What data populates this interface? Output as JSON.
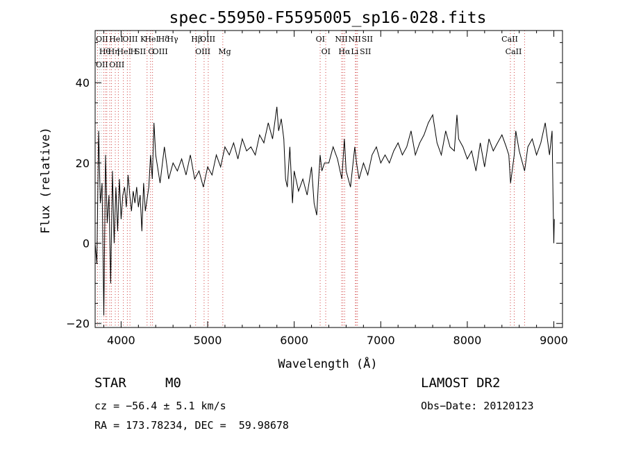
{
  "chart_data": {
    "type": "line",
    "title": "spec-55950-F5595005_sp16-028.fits",
    "xlabel": "Wavelength (Å)",
    "ylabel": "Flux (relative)",
    "xlim": [
      3700,
      9100
    ],
    "ylim": [
      -21,
      53
    ],
    "x_ticks": [
      4000,
      5000,
      6000,
      7000,
      8000,
      9000
    ],
    "y_ticks": [
      -20,
      0,
      20,
      40
    ],
    "grid": false,
    "series": [
      {
        "color": "#000000",
        "x": [
          3700,
          3720,
          3740,
          3760,
          3780,
          3800,
          3820,
          3840,
          3860,
          3880,
          3900,
          3920,
          3940,
          3960,
          3980,
          4000,
          4020,
          4040,
          4060,
          4080,
          4100,
          4120,
          4140,
          4160,
          4180,
          4200,
          4220,
          4240,
          4260,
          4280,
          4300,
          4320,
          4340,
          4360,
          4380,
          4400,
          4450,
          4500,
          4550,
          4600,
          4650,
          4700,
          4750,
          4800,
          4850,
          4900,
          4950,
          5000,
          5050,
          5100,
          5150,
          5200,
          5250,
          5300,
          5350,
          5400,
          5450,
          5500,
          5550,
          5600,
          5650,
          5700,
          5750,
          5800,
          5820,
          5850,
          5880,
          5900,
          5920,
          5950,
          5980,
          6000,
          6050,
          6100,
          6150,
          6200,
          6230,
          6260,
          6280,
          6300,
          6320,
          6350,
          6400,
          6450,
          6500,
          6550,
          6580,
          6600,
          6650,
          6700,
          6720,
          6750,
          6800,
          6850,
          6900,
          6950,
          7000,
          7050,
          7100,
          7150,
          7200,
          7250,
          7300,
          7350,
          7400,
          7450,
          7500,
          7550,
          7600,
          7650,
          7700,
          7750,
          7800,
          7850,
          7880,
          7900,
          7950,
          8000,
          8050,
          8100,
          8150,
          8200,
          8250,
          8300,
          8350,
          8400,
          8450,
          8480,
          8500,
          8542,
          8560,
          8600,
          8662,
          8700,
          8750,
          8800,
          8850,
          8900,
          8950,
          8980,
          8990,
          9000,
          9005
        ],
        "y": [
          0,
          -5,
          28,
          10,
          15,
          -18,
          22,
          5,
          12,
          -10,
          18,
          0,
          14,
          3,
          16,
          6,
          12,
          14,
          9,
          17,
          12,
          8,
          13,
          10,
          14,
          9,
          12,
          3,
          15,
          8,
          11,
          14,
          22,
          16,
          30,
          22,
          15,
          24,
          16,
          20,
          18,
          21,
          17,
          22,
          16,
          18,
          14,
          19,
          17,
          22,
          19,
          24,
          22,
          25,
          21,
          26,
          23,
          24,
          22,
          27,
          25,
          30,
          26,
          34,
          28,
          31,
          26,
          16,
          14,
          24,
          10,
          18,
          13,
          16,
          12,
          19,
          10,
          7,
          15,
          22,
          18,
          20,
          20,
          24,
          21,
          16,
          26,
          18,
          14,
          24,
          20,
          16,
          20,
          17,
          22,
          24,
          20,
          22,
          20,
          23,
          25,
          22,
          24,
          28,
          22,
          25,
          27,
          30,
          32,
          25,
          22,
          28,
          24,
          23,
          32,
          26,
          24,
          21,
          23,
          18,
          25,
          19,
          26,
          23,
          25,
          27,
          24,
          22,
          15,
          22,
          28,
          23,
          18,
          24,
          26,
          22,
          25,
          30,
          22,
          28,
          12,
          0,
          6
        ]
      }
    ],
    "reference_lines": [
      {
        "x": 3727,
        "labels": [
          "OII",
          "OII"
        ]
      },
      {
        "x": 3750,
        "labels": [],
        "color": "#b0b0b0"
      },
      {
        "x": 3771,
        "labels": [],
        "color": "#b0b0b0"
      },
      {
        "x": 3798,
        "labels": [
          "Hθ",
          "OIII"
        ]
      },
      {
        "x": 3820,
        "labels": [
          "HeI"
        ]
      },
      {
        "x": 3835,
        "labels": [
          "Hη"
        ]
      },
      {
        "x": 3869,
        "labels": [
          "OIII"
        ]
      },
      {
        "x": 3889,
        "labels": [
          "HeI"
        ]
      },
      {
        "x": 3933,
        "labels": [
          "K"
        ]
      },
      {
        "x": 3968,
        "labels": [
          "H"
        ]
      },
      {
        "x": 4026,
        "labels": [
          "HeI"
        ]
      },
      {
        "x": 4072,
        "labels": [
          "SII"
        ]
      },
      {
        "x": 4102,
        "labels": [
          "Hδ"
        ]
      },
      {
        "x": 4300,
        "labels": [
          "G"
        ]
      },
      {
        "x": 4340,
        "labels": [
          "Hγ"
        ]
      },
      {
        "x": 4363,
        "labels": [
          "OIII"
        ]
      },
      {
        "x": 4861,
        "labels": [
          "Hβ"
        ]
      },
      {
        "x": 4959,
        "labels": [
          "OIII"
        ]
      },
      {
        "x": 5007,
        "labels": [
          "OIII"
        ]
      },
      {
        "x": 5175,
        "labels": [
          "Mg"
        ]
      },
      {
        "x": 6300,
        "labels": [
          "OI"
        ]
      },
      {
        "x": 6364,
        "labels": [
          "OI"
        ]
      },
      {
        "x": 6548,
        "labels": [
          "NII"
        ]
      },
      {
        "x": 6563,
        "labels": [
          "Hα"
        ]
      },
      {
        "x": 6583,
        "labels": [
          "NII"
        ]
      },
      {
        "x": 6707,
        "labels": [
          "Li"
        ]
      },
      {
        "x": 6716,
        "labels": [
          "SII"
        ]
      },
      {
        "x": 6731,
        "labels": [
          "SII"
        ]
      },
      {
        "x": 8498,
        "labels": [
          "CaII"
        ]
      },
      {
        "x": 8542,
        "labels": [
          "CaII"
        ]
      },
      {
        "x": 8662,
        "labels": []
      }
    ],
    "reference_label_colors": [
      "#000000"
    ],
    "reference_line_color": "#d04040"
  },
  "info": {
    "object_class": "STAR",
    "subclass": "M0",
    "survey": "LAMOST DR2",
    "cz": "cz = −56.4 ± 5.1 km/s",
    "obs_date": "Obs−Date: 20120123",
    "coords": "RA = 173.78234, DEC =  59.98678"
  }
}
